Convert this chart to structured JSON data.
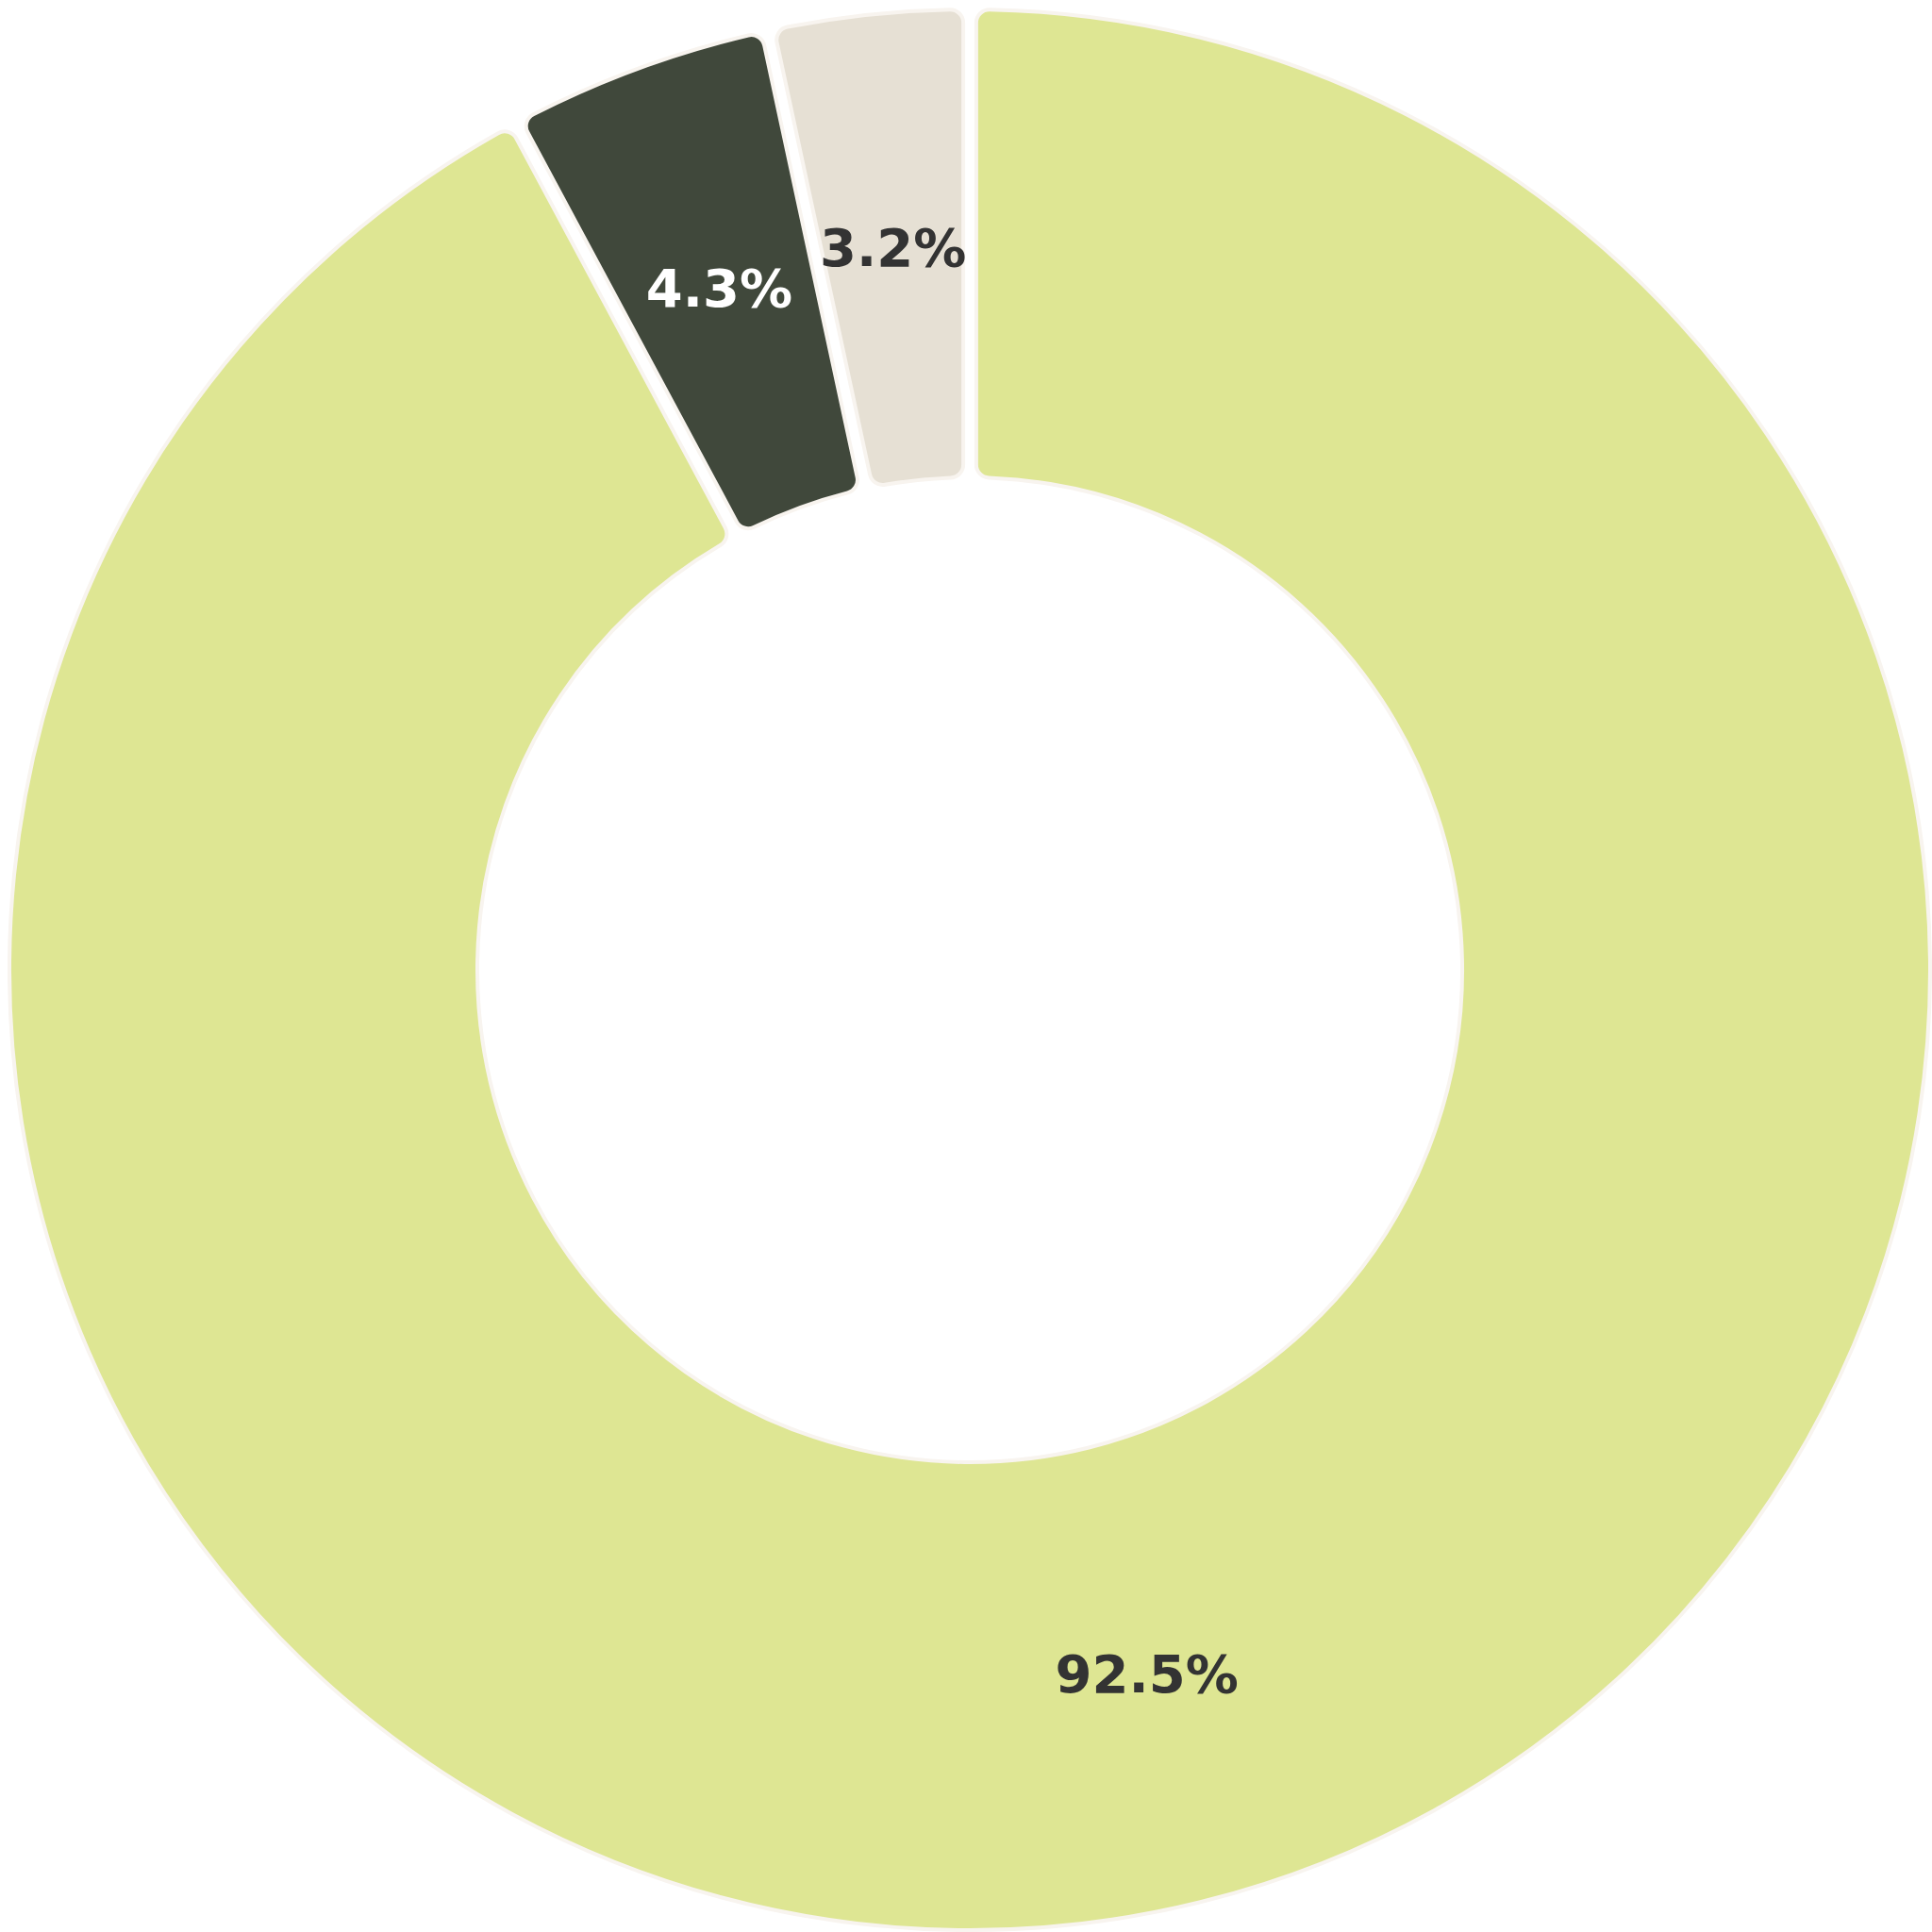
{
  "chart_data": {
    "type": "donut",
    "categories": [
      null,
      null,
      null
    ],
    "values": [
      92.5,
      4.3,
      3.2
    ],
    "colors": [
      "#dee693",
      "#40483b",
      "#e6e0d4"
    ],
    "value_labels": [
      "92.5%",
      "4.3%",
      "3.2%"
    ]
  }
}
